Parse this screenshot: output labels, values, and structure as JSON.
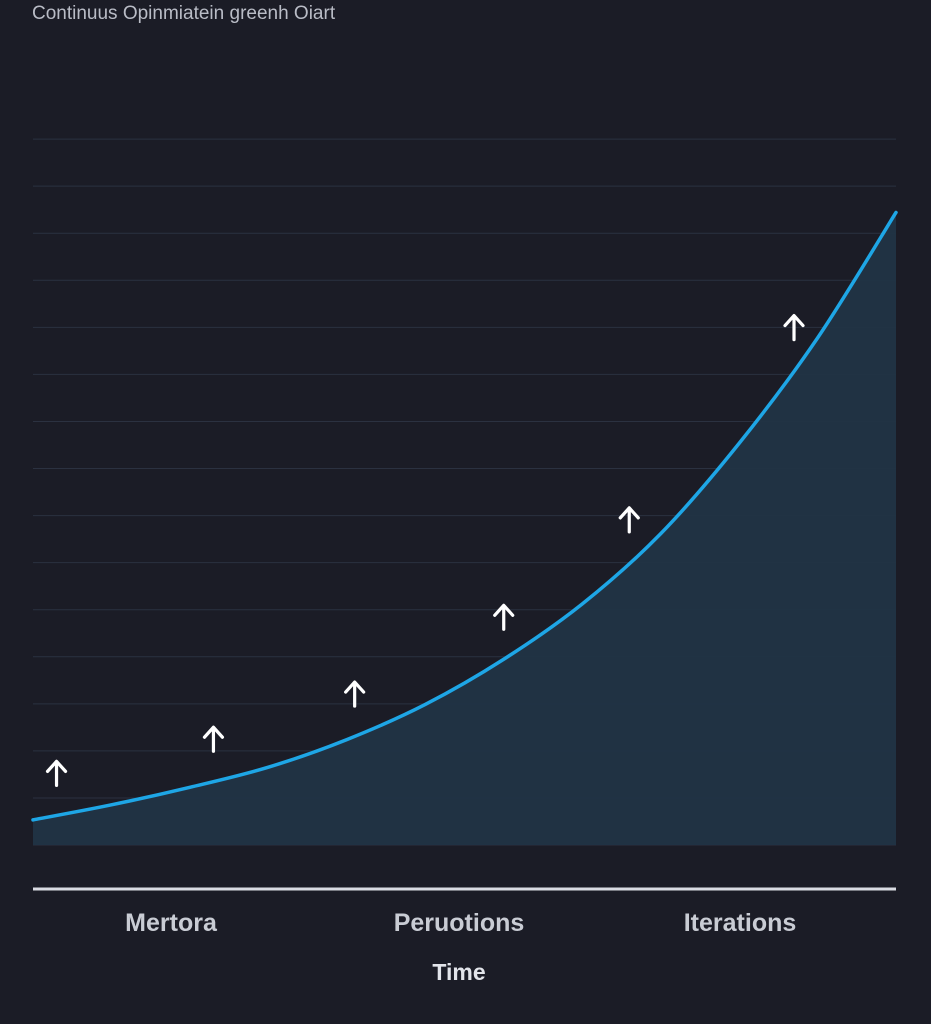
{
  "chart_data": {
    "type": "area",
    "title": "Continuus Opinmiatein greenh Oiart",
    "xlabel": "Time",
    "ylabel": "",
    "categories": [
      "Mertora",
      "Peruotions",
      "Iterations"
    ],
    "x": [
      0,
      1,
      2,
      3,
      4,
      5,
      6,
      7,
      8,
      9,
      10,
      11
    ],
    "values": [
      1.0,
      1.6,
      2.3,
      3.1,
      4.2,
      5.6,
      7.4,
      9.6,
      12.4,
      16.0,
      20.2,
      25.2
    ],
    "xlim": [
      0,
      11
    ],
    "ylim": [
      0,
      30
    ],
    "grid": true,
    "legend": "none",
    "annotations": {
      "marker": "up-arrow",
      "x": [
        0.3,
        2.3,
        4.1,
        6.0,
        7.6,
        9.7
      ]
    }
  },
  "colors": {
    "background": "#1b1c26",
    "line": "#1ea6e6",
    "area": "#213444",
    "grid": "#2b3140",
    "axis": "#d9dbe2",
    "arrow": "#ffffff"
  }
}
